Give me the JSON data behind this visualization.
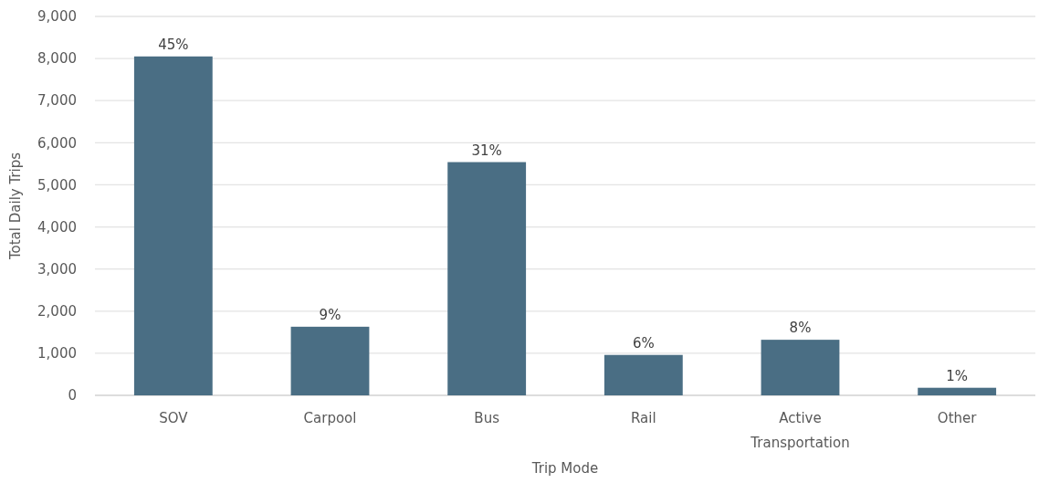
{
  "chart_data": {
    "type": "bar",
    "xlabel": "Trip Mode",
    "ylabel": "Total Daily Trips",
    "categories": [
      "SOV",
      "Carpool",
      "Bus",
      "Rail",
      "Active Transportation",
      "Other"
    ],
    "values": [
      8050,
      1630,
      5540,
      960,
      1320,
      180
    ],
    "annotations": [
      {
        "text": "45%",
        "x": "SOV",
        "y": 8050
      },
      {
        "text": "9%",
        "x": "Carpool",
        "y": 1630
      },
      {
        "text": "31%",
        "x": "Bus",
        "y": 5540
      },
      {
        "text": "6%",
        "x": "Rail",
        "y": 960
      },
      {
        "text": "8%",
        "x": "Active Transportation",
        "y": 1320
      },
      {
        "text": "1%",
        "x": "Other",
        "y": 180
      }
    ],
    "color": "#4a6e84",
    "ylim": [
      0,
      9000
    ],
    "yticks": [
      {
        "value": 0,
        "label": "0"
      },
      {
        "value": 1000,
        "label": "1,000"
      },
      {
        "value": 2000,
        "label": "2,000"
      },
      {
        "value": 3000,
        "label": "3,000"
      },
      {
        "value": 4000,
        "label": "4,000"
      },
      {
        "value": 5000,
        "label": "5,000"
      },
      {
        "value": 6000,
        "label": "6,000"
      },
      {
        "value": 7000,
        "label": "7,000"
      },
      {
        "value": 8000,
        "label": "8,000"
      },
      {
        "value": 9000,
        "label": "9,000"
      }
    ],
    "grid": "y"
  }
}
